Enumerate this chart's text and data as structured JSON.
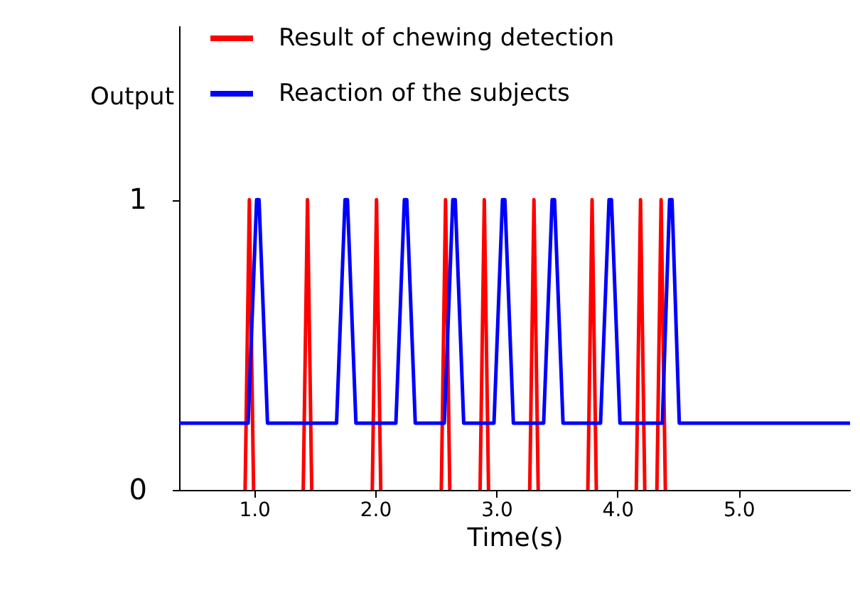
{
  "chart_data": {
    "type": "line",
    "xlabel": "Time(s)",
    "ylabel": "Output",
    "xlim": [
      0.38,
      5.92
    ],
    "xticks": [
      {
        "value": 1,
        "label": "1.0"
      },
      {
        "value": 2,
        "label": "2.0"
      },
      {
        "value": 3,
        "label": "3.0"
      },
      {
        "value": 4,
        "label": "4.0"
      },
      {
        "value": 5,
        "label": "5.0"
      }
    ],
    "ylim": [
      0,
      1.6
    ],
    "yticks": [
      0,
      1
    ],
    "grid": false,
    "legend": "top",
    "marker": "none",
    "line_style": "solid",
    "series": [
      {
        "name": "Result of chewing detection",
        "color": "#ff0000",
        "x": [
          0.925,
          0.96,
          0.995,
          null,
          1.405,
          1.44,
          1.475,
          null,
          1.975,
          2.01,
          2.045,
          null,
          2.545,
          2.58,
          2.615,
          null,
          2.865,
          2.9,
          2.935,
          null,
          3.275,
          3.31,
          3.345,
          null,
          3.755,
          3.79,
          3.825,
          null,
          4.155,
          4.19,
          4.225,
          null,
          4.325,
          4.36,
          4.395
        ],
        "values": [
          0,
          1,
          0,
          null,
          0,
          1,
          0,
          null,
          0,
          1,
          0,
          null,
          0,
          1,
          0,
          null,
          0,
          1,
          0,
          null,
          0,
          1,
          0,
          null,
          0,
          1,
          0,
          null,
          0,
          1,
          0,
          null,
          0,
          1,
          0
        ]
      },
      {
        "name": "Reaction of the subjects",
        "color": "#0000ff",
        "x": [
          0.38,
          0.95,
          1.02,
          1.04,
          1.11,
          1.68,
          1.75,
          1.77,
          1.84,
          2.17,
          2.24,
          2.26,
          2.33,
          2.57,
          2.64,
          2.66,
          2.73,
          2.98,
          3.05,
          3.07,
          3.14,
          3.39,
          3.46,
          3.48,
          3.55,
          3.86,
          3.93,
          3.95,
          4.02,
          4.37,
          4.43,
          4.45,
          4.51,
          5.92
        ],
        "values": [
          0.23,
          0.23,
          1,
          1,
          0.23,
          0.23,
          1,
          1,
          0.23,
          0.23,
          1,
          1,
          0.23,
          0.23,
          1,
          1,
          0.23,
          0.23,
          1,
          1,
          0.23,
          0.23,
          1,
          1,
          0.23,
          0.23,
          1,
          1,
          0.23,
          0.23,
          1,
          1,
          0.23,
          0.23
        ]
      }
    ]
  }
}
